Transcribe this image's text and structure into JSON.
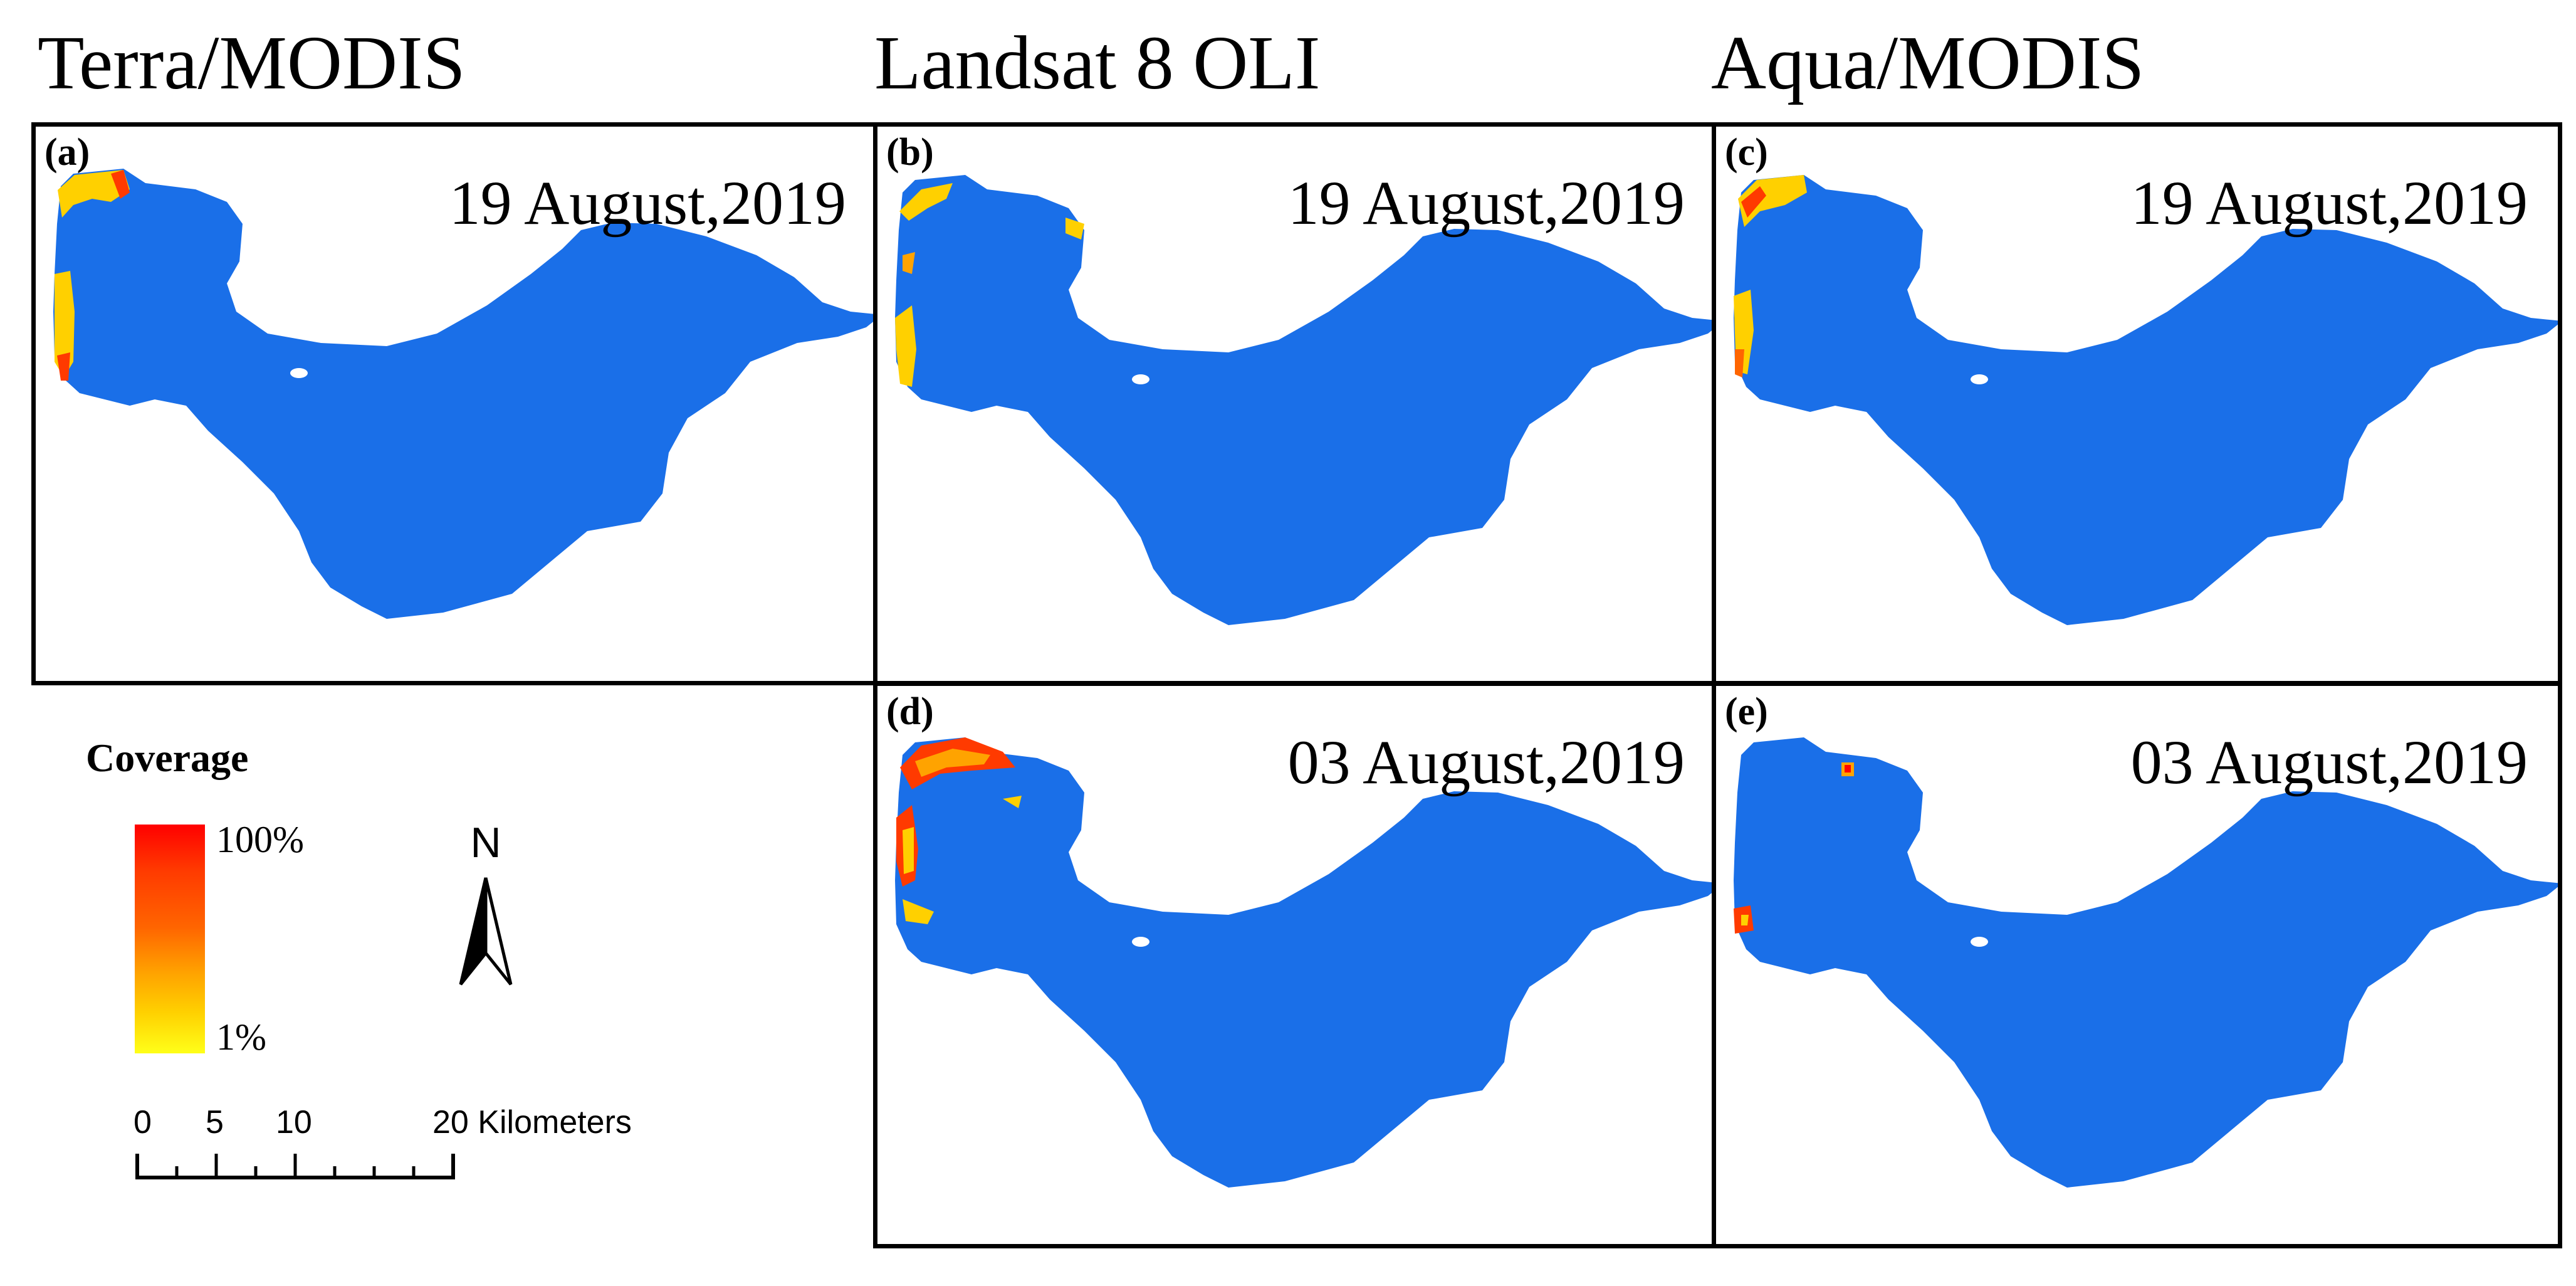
{
  "columns": {
    "terra": "Terra/MODIS",
    "landsat": "Landsat 8 OLI",
    "aqua": "Aqua/MODIS"
  },
  "panels": [
    {
      "label": "(a)",
      "date": "19 August,2019",
      "sensor": "Terra/MODIS"
    },
    {
      "label": "(b)",
      "date": "19 August,2019",
      "sensor": "Landsat 8 OLI"
    },
    {
      "label": "(c)",
      "date": "19 August,2019",
      "sensor": "Aqua/MODIS"
    },
    {
      "label": "(d)",
      "date": "03 August,2019",
      "sensor": "Landsat 8 OLI"
    },
    {
      "label": "(e)",
      "date": "03 August,2019",
      "sensor": "Aqua/MODIS"
    }
  ],
  "legend": {
    "title": "Coverage",
    "max_label": "100%",
    "min_label": "1%",
    "colors": [
      "#ffff19",
      "#ffd000",
      "#ffa300",
      "#ff6500",
      "#ff3a00",
      "#ff0000"
    ]
  },
  "north_arrow": {
    "label": "N"
  },
  "scale_bar": {
    "ticks": [
      "0",
      "5",
      "10",
      "20 Kilometers"
    ]
  },
  "colors": {
    "water": "#1a6fe8",
    "bloom_low": "#ffff19",
    "bloom_mid": "#ffa300",
    "bloom_high": "#ff0000"
  }
}
